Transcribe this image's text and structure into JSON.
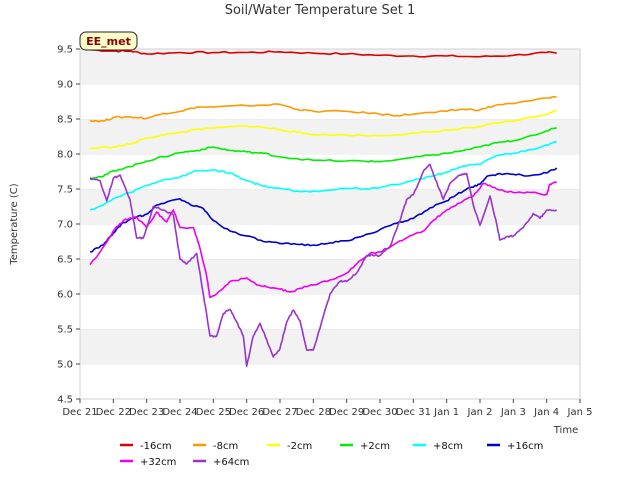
{
  "chart_data": {
    "type": "line",
    "title": "Soil/Water Temperature Set 1",
    "xlabel": "Time",
    "ylabel": "Temperature (C)",
    "annotation": "EE_met",
    "ylim": [
      4.5,
      9.5
    ],
    "xlim": [
      0,
      15
    ],
    "y_ticks": [
      "4.5",
      "5.0",
      "5.5",
      "6.0",
      "6.5",
      "7.0",
      "7.5",
      "8.0",
      "8.5",
      "9.0",
      "9.5"
    ],
    "x_ticks": [
      {
        "x": 0,
        "label": "Dec 21"
      },
      {
        "x": 1,
        "label": "Dec 22"
      },
      {
        "x": 2,
        "label": "Dec 23"
      },
      {
        "x": 3,
        "label": "Dec 24"
      },
      {
        "x": 4,
        "label": "Dec 25"
      },
      {
        "x": 5,
        "label": "Dec 26"
      },
      {
        "x": 6,
        "label": "Dec 27"
      },
      {
        "x": 7,
        "label": "Dec 28"
      },
      {
        "x": 8,
        "label": "Dec 29"
      },
      {
        "x": 9,
        "label": "Dec 30"
      },
      {
        "x": 10,
        "label": "Dec 31"
      },
      {
        "x": 11,
        "label": "Jan 1"
      },
      {
        "x": 12,
        "label": "Jan 2"
      },
      {
        "x": 13,
        "label": "Jan 3"
      },
      {
        "x": 14,
        "label": "Jan 4"
      },
      {
        "x": 15,
        "label": "Jan 5"
      }
    ],
    "grid": "horizontal bands",
    "legend_position": "bottom",
    "series": [
      {
        "name": "-16cm",
        "color": "#dd0000",
        "points": [
          [
            0.3,
            9.49
          ],
          [
            1,
            9.47
          ],
          [
            1.5,
            9.47
          ],
          [
            2,
            9.43
          ],
          [
            3,
            9.45
          ],
          [
            4,
            9.45
          ],
          [
            5,
            9.45
          ],
          [
            6,
            9.46
          ],
          [
            7,
            9.44
          ],
          [
            8,
            9.43
          ],
          [
            9,
            9.41
          ],
          [
            10,
            9.4
          ],
          [
            11,
            9.4
          ],
          [
            12,
            9.39
          ],
          [
            13,
            9.41
          ],
          [
            14,
            9.45
          ],
          [
            14.3,
            9.44
          ]
        ]
      },
      {
        "name": "-8cm",
        "color": "#ff9900",
        "points": [
          [
            0.3,
            8.48
          ],
          [
            0.7,
            8.47
          ],
          [
            1,
            8.52
          ],
          [
            1.5,
            8.53
          ],
          [
            2,
            8.51
          ],
          [
            2.5,
            8.58
          ],
          [
            3,
            8.61
          ],
          [
            3.5,
            8.67
          ],
          [
            4,
            8.67
          ],
          [
            5,
            8.69
          ],
          [
            6,
            8.71
          ],
          [
            6.5,
            8.64
          ],
          [
            7,
            8.61
          ],
          [
            8,
            8.61
          ],
          [
            9,
            8.57
          ],
          [
            9.5,
            8.55
          ],
          [
            10,
            8.57
          ],
          [
            11,
            8.61
          ],
          [
            11.5,
            8.64
          ],
          [
            12,
            8.63
          ],
          [
            12.5,
            8.7
          ],
          [
            13,
            8.72
          ],
          [
            14,
            8.8
          ],
          [
            14.3,
            8.82
          ]
        ]
      },
      {
        "name": "-2cm",
        "color": "#ffff00",
        "points": [
          [
            0.3,
            8.08
          ],
          [
            1,
            8.1
          ],
          [
            1.5,
            8.14
          ],
          [
            2,
            8.23
          ],
          [
            2.5,
            8.27
          ],
          [
            3,
            8.31
          ],
          [
            3.5,
            8.35
          ],
          [
            4,
            8.37
          ],
          [
            5,
            8.4
          ],
          [
            5.5,
            8.38
          ],
          [
            6,
            8.35
          ],
          [
            6.5,
            8.31
          ],
          [
            7,
            8.28
          ],
          [
            8,
            8.27
          ],
          [
            9,
            8.26
          ],
          [
            10,
            8.3
          ],
          [
            10.5,
            8.31
          ],
          [
            11,
            8.34
          ],
          [
            12,
            8.39
          ],
          [
            12.5,
            8.44
          ],
          [
            13,
            8.47
          ],
          [
            14,
            8.57
          ],
          [
            14.3,
            8.62
          ]
        ]
      },
      {
        "name": "+2cm",
        "color": "#00ee00",
        "points": [
          [
            0.3,
            7.66
          ],
          [
            0.7,
            7.68
          ],
          [
            1,
            7.76
          ],
          [
            1.5,
            7.82
          ],
          [
            2,
            7.9
          ],
          [
            2.5,
            7.96
          ],
          [
            3,
            8.02
          ],
          [
            3.5,
            8.05
          ],
          [
            4,
            8.1
          ],
          [
            4.5,
            8.05
          ],
          [
            5,
            8.03
          ],
          [
            5.5,
            8.01
          ],
          [
            6,
            7.96
          ],
          [
            7,
            7.91
          ],
          [
            8,
            7.9
          ],
          [
            8.5,
            7.9
          ],
          [
            9,
            7.89
          ],
          [
            10,
            7.95
          ],
          [
            10.5,
            7.98
          ],
          [
            11,
            8.01
          ],
          [
            11.5,
            8.05
          ],
          [
            12,
            8.1
          ],
          [
            12.5,
            8.16
          ],
          [
            13,
            8.19
          ],
          [
            14,
            8.33
          ],
          [
            14.3,
            8.37
          ]
        ]
      },
      {
        "name": "+8cm",
        "color": "#00ffff",
        "points": [
          [
            0.3,
            7.2
          ],
          [
            0.7,
            7.27
          ],
          [
            1,
            7.36
          ],
          [
            1.5,
            7.45
          ],
          [
            2,
            7.55
          ],
          [
            2.5,
            7.63
          ],
          [
            3,
            7.67
          ],
          [
            3.5,
            7.76
          ],
          [
            4,
            7.77
          ],
          [
            4.5,
            7.73
          ],
          [
            5,
            7.62
          ],
          [
            5.5,
            7.54
          ],
          [
            6,
            7.51
          ],
          [
            6.5,
            7.47
          ],
          [
            7,
            7.47
          ],
          [
            8,
            7.51
          ],
          [
            8.5,
            7.5
          ],
          [
            9,
            7.52
          ],
          [
            10,
            7.62
          ],
          [
            10.5,
            7.68
          ],
          [
            11,
            7.74
          ],
          [
            11.5,
            7.83
          ],
          [
            12,
            7.85
          ],
          [
            12.5,
            7.98
          ],
          [
            13,
            8.01
          ],
          [
            13.5,
            8.06
          ],
          [
            14,
            8.13
          ],
          [
            14.3,
            8.17
          ]
        ]
      },
      {
        "name": "+16cm",
        "color": "#0000cc",
        "points": [
          [
            0.3,
            6.6
          ],
          [
            0.7,
            6.7
          ],
          [
            1,
            6.87
          ],
          [
            1.3,
            7.02
          ],
          [
            1.7,
            7.1
          ],
          [
            2,
            7.14
          ],
          [
            2.3,
            7.27
          ],
          [
            2.7,
            7.33
          ],
          [
            3,
            7.36
          ],
          [
            3.3,
            7.28
          ],
          [
            3.7,
            7.22
          ],
          [
            4,
            7.05
          ],
          [
            4.5,
            6.9
          ],
          [
            5,
            6.83
          ],
          [
            5.5,
            6.75
          ],
          [
            6,
            6.72
          ],
          [
            6.5,
            6.71
          ],
          [
            7,
            6.7
          ],
          [
            7.5,
            6.73
          ],
          [
            8,
            6.76
          ],
          [
            8.5,
            6.83
          ],
          [
            9,
            6.92
          ],
          [
            9.5,
            7.01
          ],
          [
            10,
            7.08
          ],
          [
            10.5,
            7.23
          ],
          [
            11,
            7.33
          ],
          [
            11.3,
            7.42
          ],
          [
            11.7,
            7.52
          ],
          [
            12,
            7.57
          ],
          [
            12.2,
            7.68
          ],
          [
            12.5,
            7.71
          ],
          [
            13,
            7.71
          ],
          [
            13.5,
            7.69
          ],
          [
            14,
            7.73
          ],
          [
            14.3,
            7.8
          ]
        ]
      },
      {
        "name": "+32cm",
        "color": "#ee00ee",
        "points": [
          [
            0.3,
            6.42
          ],
          [
            0.6,
            6.6
          ],
          [
            1,
            6.9
          ],
          [
            1.3,
            7.05
          ],
          [
            1.7,
            7.1
          ],
          [
            2,
            6.95
          ],
          [
            2.3,
            7.17
          ],
          [
            2.6,
            7.03
          ],
          [
            2.8,
            7.2
          ],
          [
            3,
            6.95
          ],
          [
            3.4,
            6.95
          ],
          [
            3.6,
            6.65
          ],
          [
            3.8,
            6.25
          ],
          [
            3.9,
            5.95
          ],
          [
            4.1,
            6.0
          ],
          [
            4.5,
            6.18
          ],
          [
            5,
            6.23
          ],
          [
            5.3,
            6.13
          ],
          [
            5.6,
            6.1
          ],
          [
            6,
            6.07
          ],
          [
            6.3,
            6.03
          ],
          [
            6.6,
            6.08
          ],
          [
            7,
            6.13
          ],
          [
            7.5,
            6.2
          ],
          [
            8,
            6.3
          ],
          [
            8.3,
            6.43
          ],
          [
            8.7,
            6.58
          ],
          [
            9,
            6.6
          ],
          [
            9.4,
            6.7
          ],
          [
            9.8,
            6.8
          ],
          [
            10.3,
            6.9
          ],
          [
            10.6,
            7.05
          ],
          [
            11,
            7.2
          ],
          [
            11.4,
            7.3
          ],
          [
            11.8,
            7.4
          ],
          [
            12.1,
            7.58
          ],
          [
            12.5,
            7.5
          ],
          [
            13,
            7.45
          ],
          [
            13.5,
            7.45
          ],
          [
            14,
            7.42
          ],
          [
            14.1,
            7.57
          ],
          [
            14.3,
            7.6
          ]
        ]
      },
      {
        "name": "+64cm",
        "color": "#9933cc",
        "points": [
          [
            0.3,
            7.65
          ],
          [
            0.6,
            7.62
          ],
          [
            0.8,
            7.33
          ],
          [
            1,
            7.65
          ],
          [
            1.2,
            7.7
          ],
          [
            1.5,
            7.35
          ],
          [
            1.7,
            6.8
          ],
          [
            1.9,
            6.8
          ],
          [
            2.2,
            7.25
          ],
          [
            2.5,
            7.2
          ],
          [
            2.8,
            7.13
          ],
          [
            3,
            6.5
          ],
          [
            3.2,
            6.43
          ],
          [
            3.5,
            6.58
          ],
          [
            3.7,
            6.0
          ],
          [
            3.9,
            5.4
          ],
          [
            4.1,
            5.4
          ],
          [
            4.3,
            5.72
          ],
          [
            4.5,
            5.78
          ],
          [
            4.7,
            5.6
          ],
          [
            4.9,
            5.4
          ],
          [
            5,
            4.97
          ],
          [
            5.2,
            5.4
          ],
          [
            5.4,
            5.58
          ],
          [
            5.6,
            5.35
          ],
          [
            5.8,
            5.1
          ],
          [
            6,
            5.22
          ],
          [
            6.2,
            5.6
          ],
          [
            6.4,
            5.77
          ],
          [
            6.6,
            5.62
          ],
          [
            6.8,
            5.2
          ],
          [
            7,
            5.2
          ],
          [
            7.3,
            5.68
          ],
          [
            7.5,
            6.0
          ],
          [
            7.8,
            6.18
          ],
          [
            8,
            6.18
          ],
          [
            8.3,
            6.3
          ],
          [
            8.6,
            6.55
          ],
          [
            8.8,
            6.55
          ],
          [
            9,
            6.55
          ],
          [
            9.3,
            6.68
          ],
          [
            9.6,
            7.05
          ],
          [
            9.8,
            7.35
          ],
          [
            10,
            7.42
          ],
          [
            10.3,
            7.75
          ],
          [
            10.5,
            7.85
          ],
          [
            10.7,
            7.6
          ],
          [
            10.9,
            7.35
          ],
          [
            11.1,
            7.58
          ],
          [
            11.4,
            7.7
          ],
          [
            11.6,
            7.72
          ],
          [
            11.8,
            7.27
          ],
          [
            12,
            6.98
          ],
          [
            12.3,
            7.4
          ],
          [
            12.5,
            7.0
          ],
          [
            12.6,
            6.77
          ],
          [
            12.8,
            6.82
          ],
          [
            13,
            6.83
          ],
          [
            13.3,
            6.95
          ],
          [
            13.6,
            7.15
          ],
          [
            13.8,
            7.08
          ],
          [
            14,
            7.2
          ],
          [
            14.3,
            7.2
          ]
        ]
      }
    ]
  }
}
